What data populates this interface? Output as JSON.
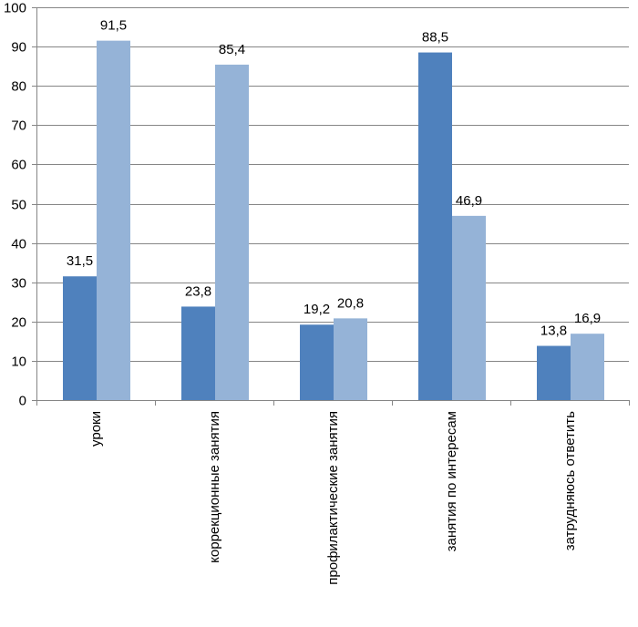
{
  "chart_data": {
    "type": "bar",
    "title": "",
    "xlabel": "",
    "ylabel": "",
    "ylim": [
      0,
      100
    ],
    "yticks": [
      0,
      10,
      20,
      30,
      40,
      50,
      60,
      70,
      80,
      90,
      100
    ],
    "grid": true,
    "legend": "none",
    "categories": [
      "уроки",
      "коррекционные занятия",
      "профилактические занятия",
      "занятия по интересам",
      "затрудняюсь ответить"
    ],
    "series": [
      {
        "name": "series-1",
        "color": "#4F81BD",
        "values": [
          31.5,
          23.8,
          19.2,
          88.5,
          13.8
        ],
        "labels": [
          "31,5",
          "23,8",
          "19,2",
          "88,5",
          "13,8"
        ]
      },
      {
        "name": "series-2",
        "color": "#95B3D7",
        "values": [
          91.5,
          85.4,
          20.8,
          46.9,
          16.9
        ],
        "labels": [
          "91,5",
          "85,4",
          "20,8",
          "46,9",
          "16,9"
        ]
      }
    ]
  },
  "colors": {
    "grid": "#868686",
    "axis": "#868686",
    "text": "#000000"
  }
}
